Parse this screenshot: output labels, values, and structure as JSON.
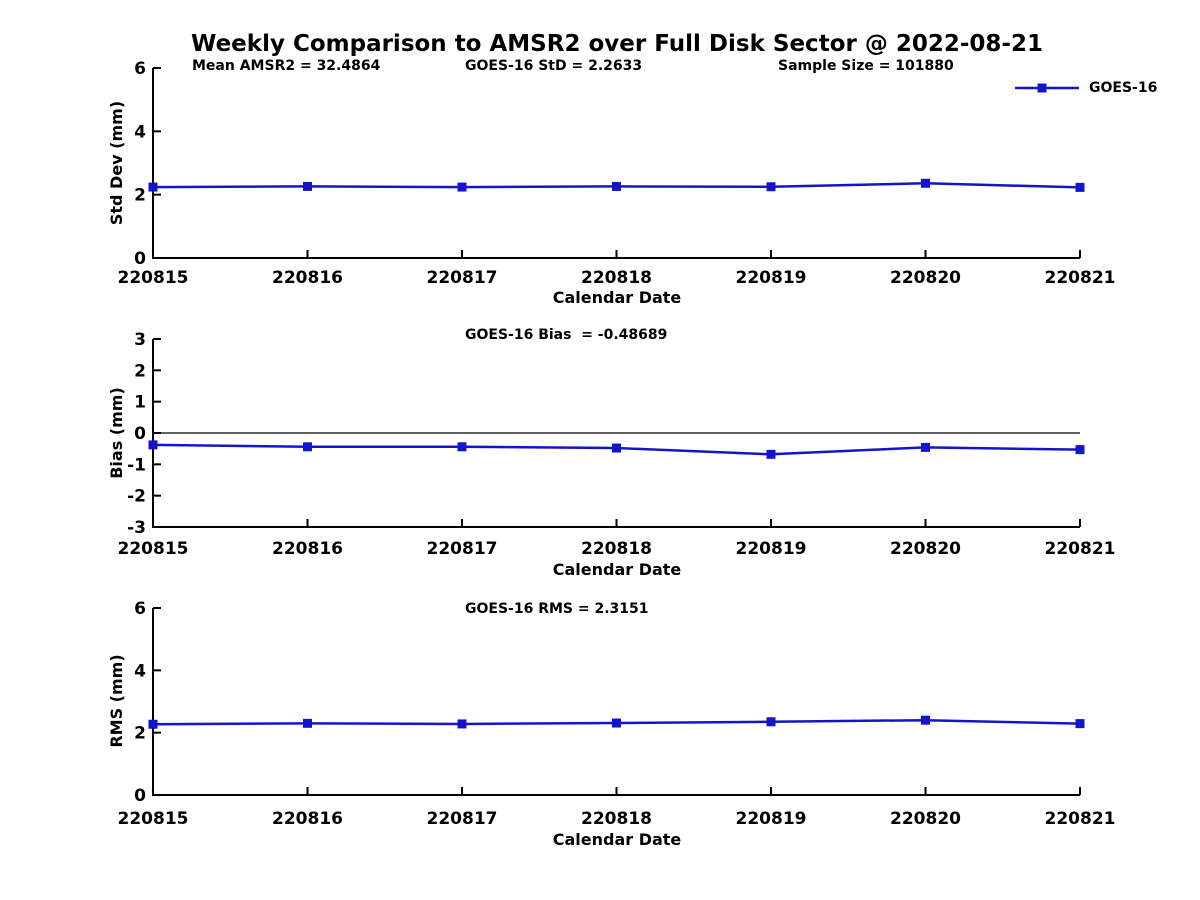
{
  "title": "Weekly Comparison to AMSR2 over Full Disk Sector @ 2022-08-21",
  "colors": {
    "series": "#1414cc",
    "axis": "#000000",
    "zero_line": "#000000",
    "background": "#ffffff"
  },
  "chart_data": [
    {
      "name": "std-dev-panel",
      "type": "line",
      "ylabel": "Std Dev (mm)",
      "xlabel": "Calendar Date",
      "categories": [
        "220815",
        "220816",
        "220817",
        "220818",
        "220819",
        "220820",
        "220821"
      ],
      "series": [
        {
          "name": "GOES-16",
          "values": [
            2.24,
            2.26,
            2.24,
            2.26,
            2.25,
            2.36,
            2.23
          ]
        }
      ],
      "ylim": [
        0,
        6
      ],
      "yticks": [
        0,
        2,
        4,
        6
      ],
      "grid": false,
      "zero_line": false,
      "annotations": [
        "Mean AMSR2 = 32.4864",
        "GOES-16 StD = 2.2633",
        "Sample Size = 101880"
      ],
      "legend": {
        "label": "GOES-16",
        "position": "top-right",
        "marker": "square"
      }
    },
    {
      "name": "bias-panel",
      "type": "line",
      "ylabel": "Bias (mm)",
      "xlabel": "Calendar Date",
      "categories": [
        "220815",
        "220816",
        "220817",
        "220818",
        "220819",
        "220820",
        "220821"
      ],
      "series": [
        {
          "name": "GOES-16",
          "values": [
            -0.38,
            -0.44,
            -0.44,
            -0.48,
            -0.68,
            -0.46,
            -0.53
          ]
        }
      ],
      "ylim": [
        -3,
        3
      ],
      "yticks": [
        -3,
        -2,
        -1,
        0,
        1,
        2,
        3
      ],
      "grid": false,
      "zero_line": true,
      "annotations": [
        "GOES-16 Bias  = -0.48689"
      ]
    },
    {
      "name": "rms-panel",
      "type": "line",
      "ylabel": "RMS (mm)",
      "xlabel": "Calendar Date",
      "categories": [
        "220815",
        "220816",
        "220817",
        "220818",
        "220819",
        "220820",
        "220821"
      ],
      "series": [
        {
          "name": "GOES-16",
          "values": [
            2.27,
            2.3,
            2.28,
            2.31,
            2.35,
            2.4,
            2.29
          ]
        }
      ],
      "ylim": [
        0,
        6
      ],
      "yticks": [
        0,
        2,
        4,
        6
      ],
      "grid": false,
      "zero_line": false,
      "annotations": [
        "GOES-16 RMS = 2.3151"
      ]
    }
  ]
}
